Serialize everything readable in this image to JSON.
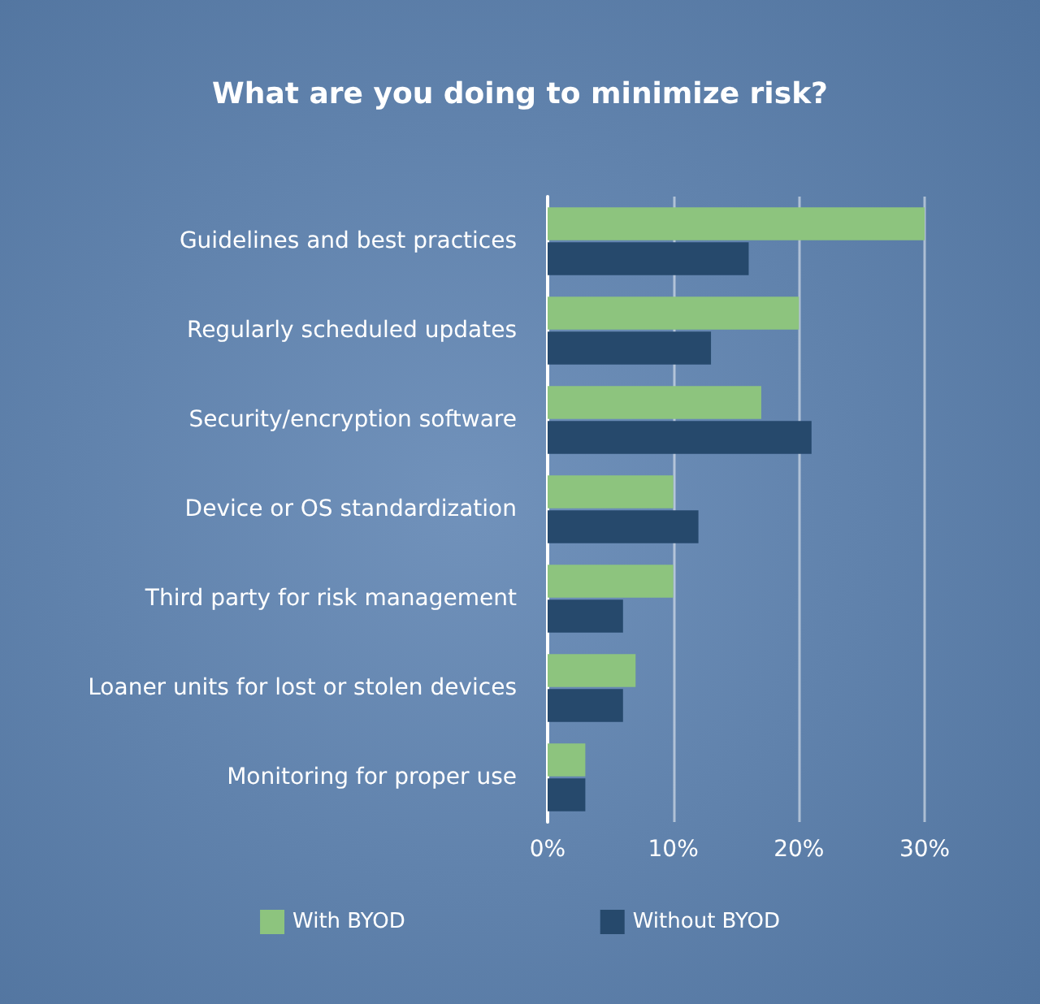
{
  "chart_data": {
    "type": "bar",
    "orientation": "horizontal",
    "title": "What are you doing to minimize risk?",
    "categories": [
      "Guidelines and best practices",
      "Regularly scheduled updates",
      "Security/encryption software",
      "Device or OS standardization",
      "Third party for risk management",
      "Loaner units for lost or stolen devices",
      "Monitoring for proper use"
    ],
    "series": [
      {
        "name": "With BYOD",
        "color": "#8dc47e",
        "values": [
          30,
          20,
          17,
          10,
          10,
          7,
          3
        ]
      },
      {
        "name": "Without BYOD",
        "color": "#26496c",
        "values": [
          16,
          13,
          21,
          12,
          6,
          6,
          3
        ]
      }
    ],
    "xlim": [
      0,
      30
    ],
    "xticks": [
      {
        "value": 0,
        "label": "0%"
      },
      {
        "value": 10,
        "label": "10%"
      },
      {
        "value": 20,
        "label": "20%"
      },
      {
        "value": 30,
        "label": "30%"
      }
    ],
    "grid": "x",
    "legend": "bottom"
  }
}
